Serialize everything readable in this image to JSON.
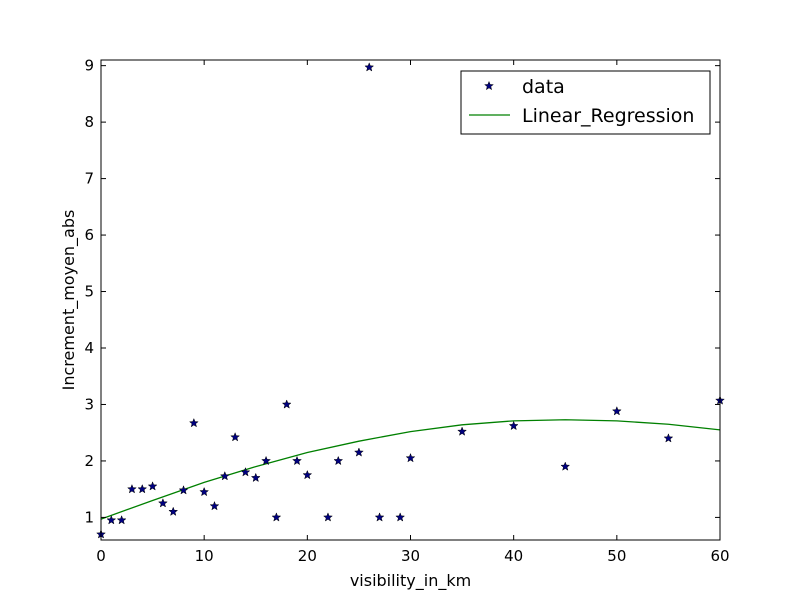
{
  "chart_data": {
    "type": "scatter",
    "title": "",
    "xlabel": "visibility_in_km",
    "ylabel": "Increment_moyen_abs",
    "xlim": [
      0,
      60
    ],
    "ylim": [
      0.6,
      9.1
    ],
    "xticks": [
      0,
      10,
      20,
      30,
      40,
      50,
      60
    ],
    "yticks": [
      1,
      2,
      3,
      4,
      5,
      6,
      7,
      8,
      9
    ],
    "grid": false,
    "legend_position": "top-right",
    "legend": {
      "data_label": "data",
      "line_label": "Linear_Regression"
    },
    "colors": {
      "data": "#000080",
      "line": "#008000"
    },
    "series": [
      {
        "name": "data",
        "kind": "scatter",
        "marker": "star",
        "x": [
          0,
          1,
          2,
          3,
          4,
          5,
          6,
          7,
          8,
          9,
          10,
          11,
          12,
          13,
          14,
          15,
          16,
          17,
          18,
          19,
          20,
          22,
          23,
          25,
          26,
          27,
          29,
          30,
          35,
          40,
          45,
          50,
          55,
          60
        ],
        "y": [
          0.7,
          0.95,
          0.95,
          1.5,
          1.5,
          1.55,
          1.25,
          1.1,
          1.48,
          2.67,
          1.45,
          1.2,
          1.73,
          2.42,
          1.8,
          1.7,
          2.0,
          1.0,
          3.0,
          2.0,
          1.75,
          1.0,
          2.0,
          2.15,
          8.97,
          1.0,
          1.0,
          2.05,
          2.52,
          2.62,
          1.9,
          2.88,
          2.4,
          3.07
        ]
      },
      {
        "name": "Linear_Regression",
        "kind": "line",
        "x": [
          0,
          5,
          10,
          15,
          20,
          25,
          30,
          35,
          40,
          45,
          50,
          55,
          60
        ],
        "y": [
          0.97,
          1.3,
          1.62,
          1.9,
          2.15,
          2.35,
          2.52,
          2.64,
          2.71,
          2.73,
          2.71,
          2.65,
          2.55
        ]
      }
    ]
  }
}
